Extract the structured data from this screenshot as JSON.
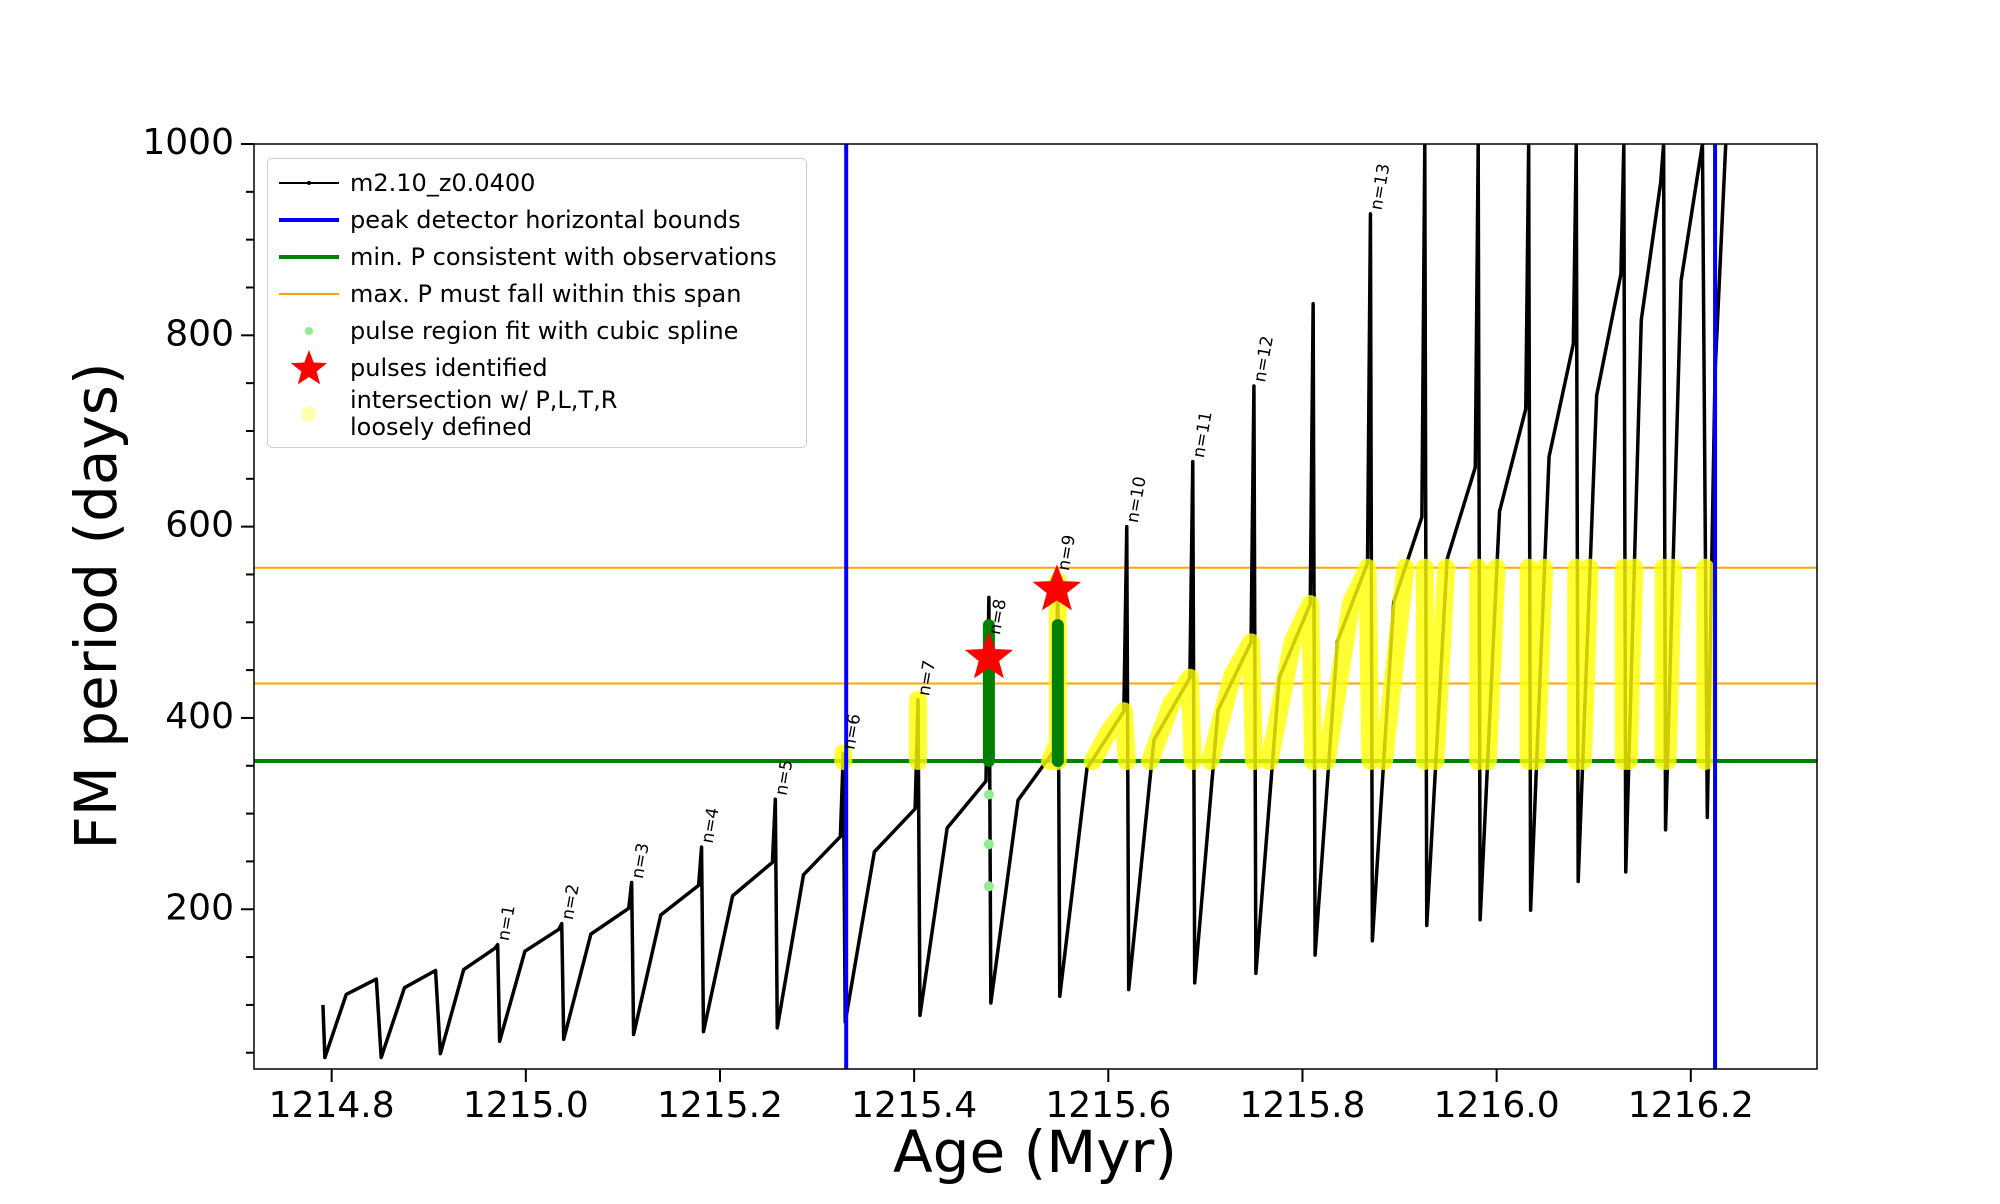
{
  "chart_data": {
    "type": "line",
    "xlabel": "Age (Myr)",
    "ylabel": "FM period (days)",
    "xlim": [
      1214.72,
      1216.33
    ],
    "ylim": [
      33,
      1000
    ],
    "xticks": [
      1214.8,
      {
        "value": 1215.0,
        "label": "1215.0"
      },
      1215.2,
      1215.4,
      1215.6,
      1215.8,
      {
        "value": 1216.0,
        "label": "1216.0"
      },
      1216.2
    ],
    "yticks": [
      200,
      400,
      600,
      800,
      1000
    ],
    "yminorticks": [
      50,
      100,
      150,
      250,
      300,
      350,
      450,
      500,
      550,
      650,
      700,
      750,
      850,
      900,
      950
    ],
    "series": [
      {
        "name": "m2.10_z0.0400",
        "color": "#000000",
        "style": "line-dots",
        "x": [
          1214.791,
          1214.793,
          1214.815,
          1214.846,
          1214.851,
          1214.875,
          1214.907,
          1214.912,
          1214.936,
          1214.968,
          1214.971,
          1214.973,
          1214.999,
          1215.034,
          1215.037,
          1215.039,
          1215.067,
          1215.106,
          1215.109,
          1215.111,
          1215.139,
          1215.178,
          1215.181,
          1215.183,
          1215.213,
          1215.254,
          1215.257,
          1215.259,
          1215.286,
          1215.324,
          1215.327,
          1215.329,
          1215.359,
          1215.401,
          1215.404,
          1215.406,
          1215.434,
          1215.474,
          1215.477,
          1215.479,
          1215.507,
          1215.545,
          1215.548,
          1215.55,
          1215.578,
          1215.616,
          1215.619,
          1215.621,
          1215.647,
          1215.684,
          1215.687,
          1215.689,
          1215.713,
          1215.747,
          1215.75,
          1215.752,
          1215.776,
          1215.808,
          1215.811,
          1215.813,
          1215.836,
          1215.867,
          1215.87,
          1215.872,
          1215.894,
          1215.923,
          1215.926,
          1215.928,
          1215.949,
          1215.978,
          1215.981,
          1215.983,
          1216.003,
          1216.03,
          1216.033,
          1216.035,
          1216.054,
          1216.079,
          1216.082,
          1216.084,
          1216.103,
          1216.128,
          1216.131,
          1216.133,
          1216.149,
          1216.169,
          1216.172,
          1216.174,
          1216.19,
          1216.212,
          1216.217,
          1216.225,
          1216.236
        ],
        "y": [
          100,
          45,
          111,
          127,
          45,
          118,
          136,
          49,
          137,
          159,
          163,
          62,
          156,
          179,
          185,
          64,
          174,
          201,
          228,
          69,
          194,
          225,
          265,
          72,
          214,
          249,
          315,
          76,
          236,
          276,
          363,
          82,
          260,
          305,
          419,
          89,
          285,
          334,
          526,
          102,
          314,
          367,
          543,
          109,
          347,
          407,
          600,
          116,
          377,
          442,
          668,
          123,
          408,
          479,
          747,
          133,
          442,
          519,
          833,
          152,
          480,
          562,
          927,
          167,
          521,
          610,
          1000,
          183,
          566,
          662,
          1000,
          189,
          616,
          723,
          1000,
          199,
          673,
          791,
          1000,
          229,
          737,
          864,
          1000,
          239,
          816,
          960,
          1000,
          283,
          857,
          1000,
          296,
          761,
          1000
        ]
      },
      {
        "name": "peak detector horizontal bounds",
        "color": "#0000ff",
        "style": "vline",
        "x": [
          1215.33,
          1216.225
        ]
      },
      {
        "name": "min. P consistent with observations",
        "color": "#008000",
        "style": "hline",
        "y": [
          355
        ]
      },
      {
        "name": "max. P must fall within this span",
        "color": "#ffa500",
        "style": "hline",
        "y": [
          436,
          557
        ]
      },
      {
        "name": "pulse region fit with cubic spline",
        "color": "#90ee90",
        "style": "scatter",
        "x": [
          1215.477,
          1215.477,
          1215.477
        ],
        "y": [
          320,
          268,
          224
        ]
      },
      {
        "name": "pulses identified",
        "color": "#ff0000",
        "style": "star",
        "x": [
          1215.477,
          1215.547
        ],
        "y": [
          463,
          534
        ]
      },
      {
        "name": "intersection w/ P,L,T,R\nloosely defined",
        "color": "#ffff00",
        "style": "thick",
        "x": [
          1215.327,
          1215.327,
          null,
          1215.404,
          1215.404,
          null,
          1215.548,
          1215.548,
          null,
          1215.54,
          1215.545,
          null,
          1215.584,
          1215.6,
          1215.616,
          1215.619,
          null,
          1215.643,
          1215.665,
          1215.684,
          1215.687,
          null,
          1215.705,
          1215.728,
          1215.747,
          1215.75,
          null,
          1215.766,
          1215.79,
          1215.808,
          1215.811,
          null,
          1215.825,
          1215.85,
          1215.867,
          1215.87,
          null,
          1215.884,
          1215.906,
          null,
          1215.926,
          1215.926,
          null,
          1215.937,
          1215.948,
          null,
          1215.981,
          1215.981,
          null,
          1215.991,
          1216.0,
          null,
          1216.033,
          1216.033,
          null,
          1216.041,
          1216.049,
          null,
          1216.082,
          1216.082,
          null,
          1216.089,
          1216.096,
          null,
          1216.131,
          1216.131,
          null,
          1216.136,
          1216.142,
          null,
          1216.172,
          1216.172,
          null,
          1216.176,
          1216.182,
          null,
          1216.215,
          1216.215
        ],
        "y": [
          355,
          363,
          null,
          355,
          419,
          null,
          355,
          543,
          null,
          355,
          367,
          null,
          355,
          385,
          407,
          355,
          null,
          355,
          415,
          442,
          355,
          null,
          355,
          445,
          479,
          355,
          null,
          355,
          480,
          519,
          355,
          null,
          355,
          520,
          557,
          355,
          null,
          355,
          557,
          null,
          557,
          355,
          null,
          355,
          557,
          null,
          557,
          355,
          null,
          355,
          557,
          null,
          557,
          355,
          null,
          355,
          557,
          null,
          557,
          355,
          null,
          355,
          557,
          null,
          557,
          355,
          null,
          355,
          557,
          null,
          557,
          355,
          null,
          355,
          557,
          null,
          557,
          355
        ]
      },
      {
        "color": "#007f00",
        "style": "thick",
        "x": [
          1215.477,
          1215.477,
          null,
          1215.548,
          1215.548
        ],
        "y": [
          355,
          497,
          null,
          355,
          497
        ]
      }
    ],
    "annotations": [
      {
        "text": "n=1",
        "x": 1214.971,
        "y": 163
      },
      {
        "text": "n=2",
        "x": 1215.037,
        "y": 185
      },
      {
        "text": "n=3",
        "x": 1215.109,
        "y": 228
      },
      {
        "text": "n=4",
        "x": 1215.181,
        "y": 265
      },
      {
        "text": "n=5",
        "x": 1215.257,
        "y": 315
      },
      {
        "text": "n=6",
        "x": 1215.327,
        "y": 363
      },
      {
        "text": "n=7",
        "x": 1215.404,
        "y": 419
      },
      {
        "text": "n=8",
        "x": 1215.477,
        "y": 483
      },
      {
        "text": "n=9",
        "x": 1215.548,
        "y": 550
      },
      {
        "text": "n=10",
        "x": 1215.619,
        "y": 600
      },
      {
        "text": "n=11",
        "x": 1215.687,
        "y": 668
      },
      {
        "text": "n=12",
        "x": 1215.75,
        "y": 747
      },
      {
        "text": "n=13",
        "x": 1215.87,
        "y": 927
      }
    ]
  }
}
